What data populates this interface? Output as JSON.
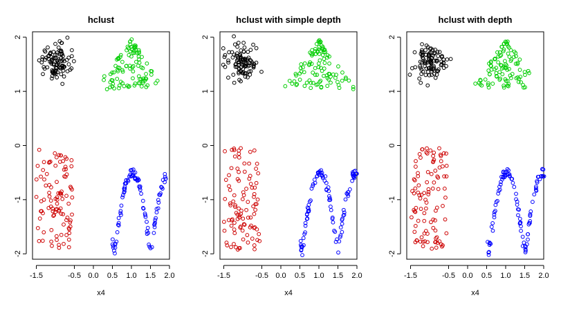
{
  "chart_data": [
    {
      "type": "scatter",
      "title": "hclust",
      "xlabel": "x4",
      "ylabel": "",
      "xlim": [
        -1.6,
        2.0
      ],
      "ylim": [
        -2.1,
        2.1
      ],
      "xticks": [
        "-1.5",
        "-0.5",
        "0.0",
        "0.5",
        "1.0",
        "1.5",
        "2.0"
      ],
      "xtick_values": [
        -1.5,
        -0.5,
        0.0,
        0.5,
        1.0,
        1.5,
        2.0
      ],
      "yticks": [
        "-2",
        "-1",
        "0",
        "1",
        "2"
      ],
      "ytick_values": [
        -2,
        -1,
        0,
        1,
        2
      ],
      "clusters": [
        {
          "color": "#000000",
          "shape": "blob",
          "center": [
            -1.0,
            1.55
          ],
          "spread": [
            0.25,
            0.22
          ],
          "count": 100
        },
        {
          "color": "#00cd00",
          "shape": "triangle",
          "apex": [
            1.0,
            1.95
          ],
          "base_y": 1.05,
          "base_x": [
            0.05,
            1.95
          ],
          "count": 100
        },
        {
          "color": "#cd0000",
          "shape": "band",
          "x": [
            -1.5,
            -0.55
          ],
          "y": [
            -1.95,
            -0.05
          ],
          "count": 100
        },
        {
          "color": "#0000ff",
          "shape": "curve",
          "x": [
            0.5,
            2.0
          ],
          "count": 100
        }
      ]
    },
    {
      "type": "scatter",
      "title": "hclust with simple depth",
      "xlabel": "x4",
      "ylabel": "",
      "xlim": [
        -1.6,
        2.0
      ],
      "ylim": [
        -2.1,
        2.1
      ],
      "xticks": [
        "-1.5",
        "-0.5",
        "0.0",
        "0.5",
        "1.0",
        "1.5",
        "2.0"
      ],
      "xtick_values": [
        -1.5,
        -0.5,
        0.0,
        0.5,
        1.0,
        1.5,
        2.0
      ],
      "yticks": [
        "-2",
        "-1",
        "0",
        "1",
        "2"
      ],
      "ytick_values": [
        -2,
        -1,
        0,
        1,
        2
      ],
      "clusters": [
        {
          "color": "#000000",
          "shape": "blob",
          "center": [
            -1.0,
            1.55
          ],
          "spread": [
            0.25,
            0.22
          ],
          "count": 100
        },
        {
          "color": "#00cd00",
          "shape": "triangle",
          "apex": [
            1.0,
            1.95
          ],
          "base_y": 1.05,
          "base_x": [
            0.05,
            1.95
          ],
          "count": 100
        },
        {
          "color": "#cd0000",
          "shape": "band",
          "x": [
            -1.5,
            -0.55
          ],
          "y": [
            -1.95,
            -0.05
          ],
          "count": 100
        },
        {
          "color": "#0000ff",
          "shape": "curve",
          "x": [
            0.5,
            2.0
          ],
          "count": 100
        }
      ]
    },
    {
      "type": "scatter",
      "title": "hclust with depth",
      "xlabel": "x4",
      "ylabel": "",
      "xlim": [
        -1.6,
        2.0
      ],
      "ylim": [
        -2.1,
        2.1
      ],
      "xticks": [
        "-1.5",
        "-0.5",
        "0.0",
        "0.5",
        "1.0",
        "1.5",
        "2.0"
      ],
      "xtick_values": [
        -1.5,
        -0.5,
        0.0,
        0.5,
        1.0,
        1.5,
        2.0
      ],
      "yticks": [
        "-2",
        "-1",
        "0",
        "1",
        "2"
      ],
      "ytick_values": [
        -2,
        -1,
        0,
        1,
        2
      ],
      "clusters": [
        {
          "color": "#000000",
          "shape": "blob",
          "center": [
            -1.0,
            1.55
          ],
          "spread": [
            0.25,
            0.22
          ],
          "count": 100
        },
        {
          "color": "#00cd00",
          "shape": "triangle",
          "apex": [
            1.0,
            1.95
          ],
          "base_y": 1.05,
          "base_x": [
            0.05,
            1.95
          ],
          "count": 100
        },
        {
          "color": "#cd0000",
          "shape": "band",
          "x": [
            -1.5,
            -0.55
          ],
          "y": [
            -1.95,
            -0.05
          ],
          "count": 100
        },
        {
          "color": "#0000ff",
          "shape": "curve",
          "x": [
            0.5,
            2.0
          ],
          "count": 100
        }
      ]
    }
  ]
}
